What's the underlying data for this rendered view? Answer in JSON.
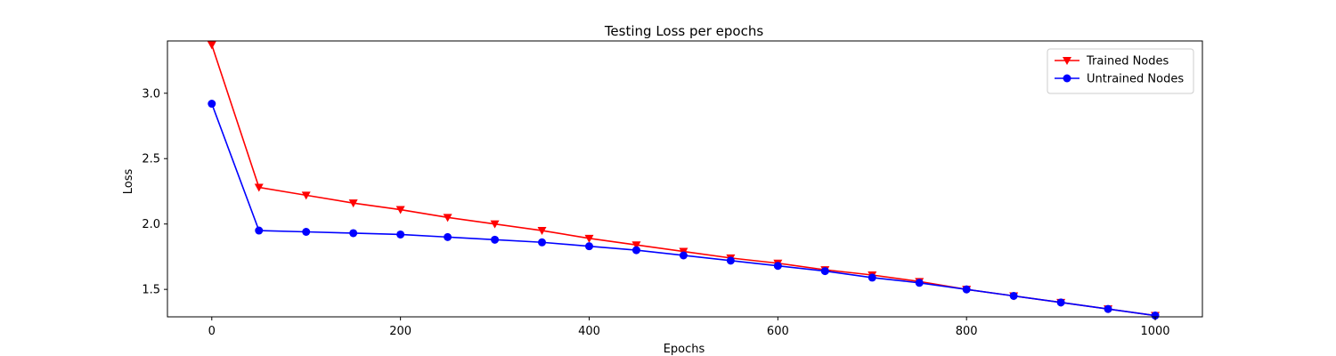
{
  "chart_data": {
    "type": "line",
    "title": "Testing Loss per epochs",
    "xlabel": "Epochs",
    "ylabel": "Loss",
    "xlim": [
      -47,
      1050
    ],
    "ylim": [
      1.29,
      3.4
    ],
    "xticks": [
      0,
      200,
      400,
      600,
      800,
      1000
    ],
    "yticks": [
      1.5,
      2.0,
      2.5,
      3.0
    ],
    "ytick_labels": [
      "1.5",
      "2.0",
      "2.5",
      "3.0"
    ],
    "grid": false,
    "legend": "top-right",
    "x": [
      0,
      50,
      100,
      150,
      200,
      250,
      300,
      350,
      400,
      450,
      500,
      550,
      600,
      650,
      700,
      750,
      800,
      850,
      900,
      950,
      1000
    ],
    "series": [
      {
        "name": "Trained Nodes",
        "color": "#ff0000",
        "marker": "triangle-down",
        "values": [
          3.37,
          2.28,
          2.22,
          2.16,
          2.11,
          2.05,
          2.0,
          1.95,
          1.89,
          1.84,
          1.79,
          1.74,
          1.7,
          1.65,
          1.61,
          1.56,
          1.5,
          1.45,
          1.4,
          1.35,
          1.3
        ]
      },
      {
        "name": "Untrained Nodes",
        "color": "#0000ff",
        "marker": "circle",
        "values": [
          2.92,
          1.95,
          1.94,
          1.93,
          1.92,
          1.9,
          1.88,
          1.86,
          1.83,
          1.8,
          1.76,
          1.72,
          1.68,
          1.64,
          1.59,
          1.55,
          1.5,
          1.45,
          1.4,
          1.35,
          1.3
        ]
      }
    ]
  }
}
